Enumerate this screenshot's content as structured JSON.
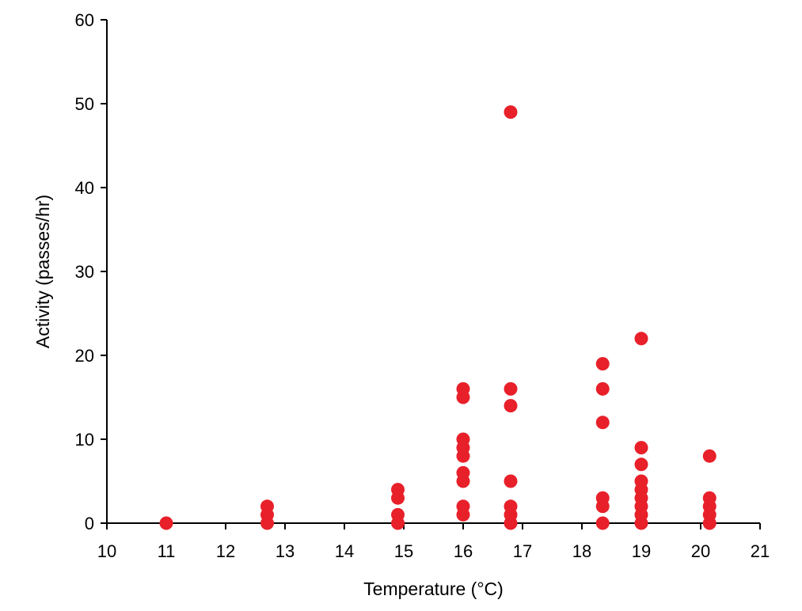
{
  "chart_data": {
    "type": "scatter",
    "title": "",
    "xlabel": "Temperature (°C)",
    "ylabel": "Activity (passes/hr)",
    "xlim": [
      10,
      21
    ],
    "ylim": [
      0,
      60
    ],
    "x_ticks": [
      10,
      11,
      12,
      13,
      14,
      15,
      16,
      17,
      18,
      19,
      20,
      21
    ],
    "y_ticks": [
      0,
      10,
      20,
      30,
      40,
      50,
      60
    ],
    "grid": false,
    "legend": "none",
    "marker_color": "#e8202a",
    "series": [
      {
        "points": [
          {
            "x": 11.0,
            "y": 0
          },
          {
            "x": 12.7,
            "y": 0
          },
          {
            "x": 12.7,
            "y": 1
          },
          {
            "x": 12.7,
            "y": 2
          },
          {
            "x": 14.9,
            "y": 0
          },
          {
            "x": 14.9,
            "y": 1
          },
          {
            "x": 14.9,
            "y": 3
          },
          {
            "x": 14.9,
            "y": 4
          },
          {
            "x": 16.0,
            "y": 1
          },
          {
            "x": 16.0,
            "y": 2
          },
          {
            "x": 16.0,
            "y": 5
          },
          {
            "x": 16.0,
            "y": 6
          },
          {
            "x": 16.0,
            "y": 8
          },
          {
            "x": 16.0,
            "y": 9
          },
          {
            "x": 16.0,
            "y": 10
          },
          {
            "x": 16.0,
            "y": 15
          },
          {
            "x": 16.0,
            "y": 16
          },
          {
            "x": 16.8,
            "y": 0
          },
          {
            "x": 16.8,
            "y": 1
          },
          {
            "x": 16.8,
            "y": 2
          },
          {
            "x": 16.8,
            "y": 5
          },
          {
            "x": 16.8,
            "y": 14
          },
          {
            "x": 16.8,
            "y": 16
          },
          {
            "x": 16.8,
            "y": 49
          },
          {
            "x": 18.35,
            "y": 0
          },
          {
            "x": 18.35,
            "y": 2
          },
          {
            "x": 18.35,
            "y": 3
          },
          {
            "x": 18.35,
            "y": 12
          },
          {
            "x": 18.35,
            "y": 16
          },
          {
            "x": 18.35,
            "y": 19
          },
          {
            "x": 19.0,
            "y": 0
          },
          {
            "x": 19.0,
            "y": 1
          },
          {
            "x": 19.0,
            "y": 2
          },
          {
            "x": 19.0,
            "y": 3
          },
          {
            "x": 19.0,
            "y": 4
          },
          {
            "x": 19.0,
            "y": 5
          },
          {
            "x": 19.0,
            "y": 7
          },
          {
            "x": 19.0,
            "y": 9
          },
          {
            "x": 19.0,
            "y": 22
          },
          {
            "x": 20.15,
            "y": 0
          },
          {
            "x": 20.15,
            "y": 1
          },
          {
            "x": 20.15,
            "y": 2
          },
          {
            "x": 20.15,
            "y": 3
          },
          {
            "x": 20.15,
            "y": 8
          }
        ]
      }
    ]
  }
}
